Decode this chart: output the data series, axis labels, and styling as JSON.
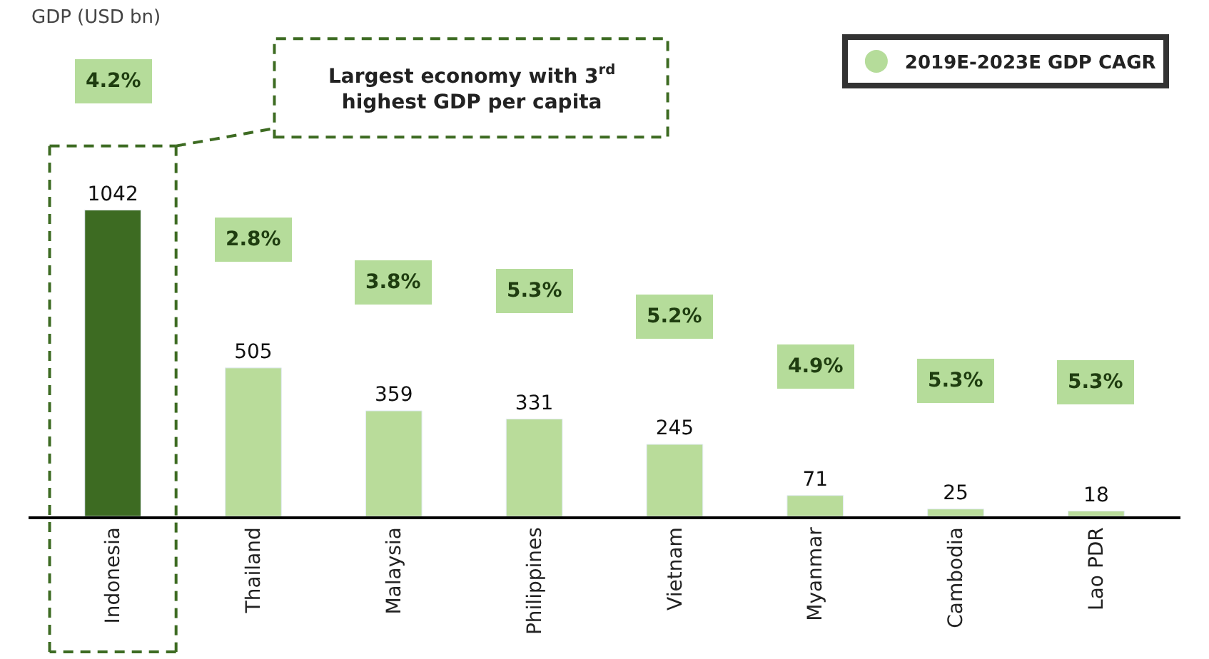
{
  "chart_data": {
    "type": "bar",
    "ylabel": "GDP (USD bn)",
    "categories": [
      "Indonesia",
      "Thailand",
      "Malaysia",
      "Philippines",
      "Vietnam",
      "Myanmar",
      "Cambodia",
      "Lao PDR"
    ],
    "series": [
      {
        "colors": [
          "#3d6b22",
          "#b9dc9a",
          "#b9dc9a",
          "#b9dc9a",
          "#b9dc9a",
          "#b9dc9a",
          "#b9dc9a",
          "#b9dc9a"
        ],
        "values": [
          1042,
          505,
          359,
          331,
          245,
          71,
          25,
          18
        ]
      },
      {
        "type": "scatter",
        "name": "2019E-2023E GDP CAGR",
        "color": "#b5dc9a",
        "values": [
          null,
          null,
          null,
          null,
          null,
          null,
          null,
          null
        ]
      }
    ],
    "data_labels": true,
    "ylim": [
      0,
      1640
    ],
    "legend": "top right",
    "annotations": [
      "Largest economy with 3$^{rd}$ highest GDP per capita",
      "4.2%",
      "2.8%",
      "3.8%",
      "5.3%",
      "5.2%",
      "4.9%",
      "5.3%",
      "5.3%"
    ]
  }
}
